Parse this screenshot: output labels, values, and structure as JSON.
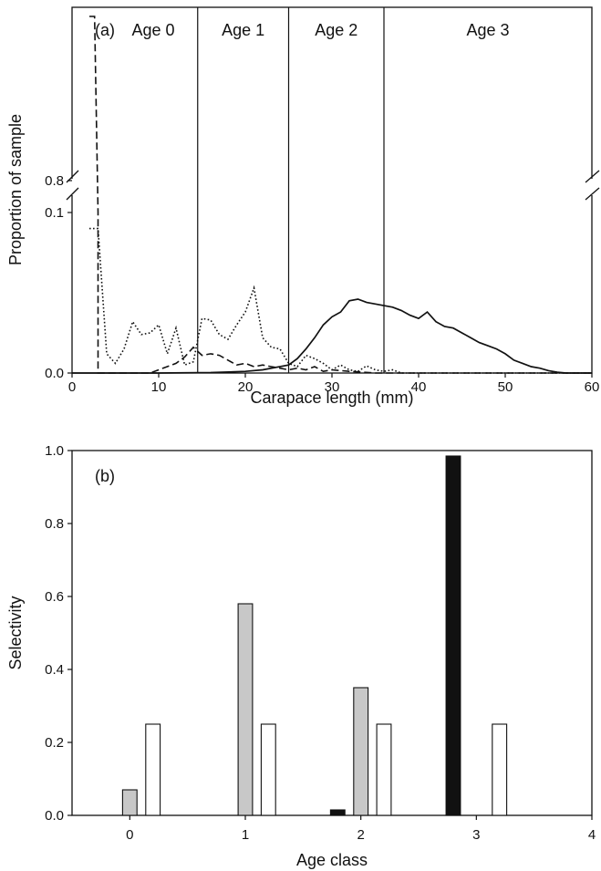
{
  "chart_data": [
    {
      "type": "line",
      "panel_label": "(a)",
      "xlabel": "Carapace length (mm)",
      "ylabel": "Proportion of sample",
      "xlim": [
        0,
        60
      ],
      "xticks": [
        "0",
        "10",
        "20",
        "30",
        "40",
        "50",
        "60"
      ],
      "yticks_lower": [
        "0.0",
        "0.1"
      ],
      "yticks_upper": [
        "0.8"
      ],
      "y_axis_break": {
        "lower_range": [
          0,
          0.1
        ],
        "upper_top": 0.8
      },
      "age_boundaries": [
        14.5,
        25,
        36
      ],
      "age_labels": [
        "Age 0",
        "Age 1",
        "Age 2",
        "Age 3"
      ],
      "series": [
        {
          "line_style": "solid",
          "points": [
            [
              0,
              0
            ],
            [
              10,
              0
            ],
            [
              16,
              0.0003
            ],
            [
              20,
              0.001
            ],
            [
              22,
              0.002
            ],
            [
              25,
              0.005
            ],
            [
              26,
              0.009
            ],
            [
              27,
              0.015
            ],
            [
              28,
              0.022
            ],
            [
              29,
              0.03
            ],
            [
              30,
              0.035
            ],
            [
              31,
              0.038
            ],
            [
              32,
              0.045
            ],
            [
              33,
              0.046
            ],
            [
              34,
              0.044
            ],
            [
              35,
              0.043
            ],
            [
              36,
              0.042
            ],
            [
              37,
              0.041
            ],
            [
              38,
              0.039
            ],
            [
              39,
              0.036
            ],
            [
              40,
              0.034
            ],
            [
              41,
              0.038
            ],
            [
              42,
              0.032
            ],
            [
              43,
              0.029
            ],
            [
              44,
              0.028
            ],
            [
              45,
              0.025
            ],
            [
              46,
              0.022
            ],
            [
              47,
              0.019
            ],
            [
              48,
              0.017
            ],
            [
              49,
              0.015
            ],
            [
              50,
              0.012
            ],
            [
              51,
              0.008
            ],
            [
              52,
              0.006
            ],
            [
              53,
              0.004
            ],
            [
              54,
              0.003
            ],
            [
              55,
              0.0015
            ],
            [
              56,
              0.0005
            ],
            [
              57,
              0
            ],
            [
              60,
              0
            ]
          ]
        },
        {
          "line_style": "dotted",
          "points": [
            [
              2,
              0.09
            ],
            [
              3,
              0.09
            ],
            [
              4,
              0.012
            ],
            [
              5,
              0.006
            ],
            [
              6,
              0.015
            ],
            [
              7,
              0.032
            ],
            [
              8,
              0.024
            ],
            [
              9,
              0.025
            ],
            [
              10,
              0.03
            ],
            [
              11,
              0.012
            ],
            [
              12,
              0.028
            ],
            [
              13,
              0.005
            ],
            [
              14,
              0.007
            ],
            [
              15,
              0.034
            ],
            [
              16,
              0.033
            ],
            [
              17,
              0.024
            ],
            [
              18,
              0.021
            ],
            [
              19,
              0.03
            ],
            [
              20,
              0.038
            ],
            [
              21,
              0.053
            ],
            [
              22,
              0.022
            ],
            [
              23,
              0.016
            ],
            [
              24,
              0.015
            ],
            [
              25,
              0.006
            ],
            [
              26,
              0.004
            ],
            [
              27,
              0.011
            ],
            [
              28,
              0.009
            ],
            [
              29,
              0.006
            ],
            [
              30,
              0.002
            ],
            [
              31,
              0.005
            ],
            [
              32,
              0.002
            ],
            [
              33,
              0.001
            ],
            [
              34,
              0.0045
            ],
            [
              35,
              0.002
            ],
            [
              36,
              0.001
            ],
            [
              37,
              0.002
            ],
            [
              38,
              0
            ],
            [
              60,
              0
            ]
          ]
        },
        {
          "line_style": "dashed",
          "points": [
            [
              2,
              0.8
            ],
            [
              2.6,
              0.8
            ],
            [
              3,
              0.1
            ],
            [
              3,
              0
            ],
            [
              7,
              0
            ],
            [
              9,
              0
            ],
            [
              10,
              0.002
            ],
            [
              12,
              0.006
            ],
            [
              13,
              0.01
            ],
            [
              14,
              0.016
            ],
            [
              15,
              0.011
            ],
            [
              16,
              0.012
            ],
            [
              17,
              0.011
            ],
            [
              18,
              0.008
            ],
            [
              19,
              0.005
            ],
            [
              20,
              0.006
            ],
            [
              21,
              0.004
            ],
            [
              22,
              0.005
            ],
            [
              23,
              0.004
            ],
            [
              24,
              0.003
            ],
            [
              25,
              0.002
            ],
            [
              26,
              0.003
            ],
            [
              27,
              0.002
            ],
            [
              28,
              0.004
            ],
            [
              29,
              0.001
            ],
            [
              30,
              0.002
            ],
            [
              32,
              0.001
            ],
            [
              35,
              0
            ],
            [
              60,
              0
            ]
          ]
        }
      ]
    },
    {
      "type": "bar",
      "panel_label": "(b)",
      "xlabel": "Age class",
      "ylabel": "Selectivity",
      "xlim": [
        -0.5,
        4
      ],
      "ylim": [
        0,
        1.0
      ],
      "xticks": [
        "0",
        "1",
        "2",
        "3",
        "4"
      ],
      "yticks": [
        "0.0",
        "0.2",
        "0.4",
        "0.6",
        "0.8",
        "1.0"
      ],
      "series": [
        {
          "fill": "#111111",
          "offset": -0.2,
          "values": [
            0,
            0,
            0.015,
            0.985
          ]
        },
        {
          "fill": "#c8c8c8",
          "offset": 0.0,
          "values": [
            0.07,
            0.58,
            0.35,
            0
          ]
        },
        {
          "fill": "#ffffff",
          "offset": 0.2,
          "values": [
            0.25,
            0.25,
            0.25,
            0.25
          ]
        }
      ]
    }
  ]
}
